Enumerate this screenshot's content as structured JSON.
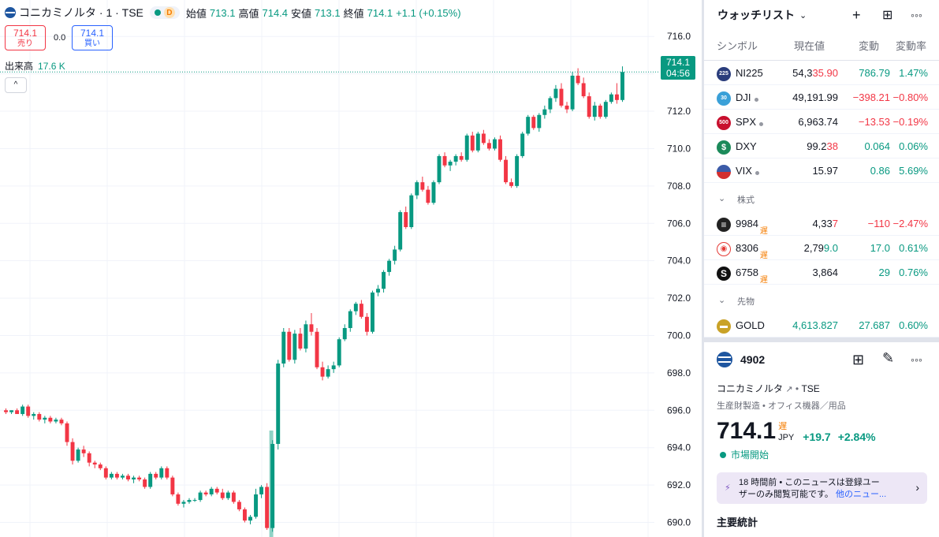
{
  "header": {
    "title": "コニカミノルタ · 1 · TSE",
    "interval_badge": "D",
    "open_label": "始値",
    "open": "713.1",
    "high_label": "高値",
    "high": "714.4",
    "low_label": "安値",
    "low": "713.1",
    "close_label": "終値",
    "close": "714.1",
    "change": "+1.1 (+0.15%)"
  },
  "trade": {
    "sell_price": "714.1",
    "sell_label": "売り",
    "spread": "0.0",
    "buy_price": "714.1",
    "buy_label": "買い"
  },
  "volume": {
    "label": "出来高",
    "value": "17.6 K"
  },
  "price_tag": {
    "price": "714.1",
    "countdown": "04:56"
  },
  "colors": {
    "up": "#089981",
    "down": "#f23645",
    "accent": "#2962ff"
  },
  "chart_data": {
    "type": "candlestick",
    "y_ticks": [
      "716.0",
      "714.0",
      "712.0",
      "710.0",
      "708.0",
      "706.0",
      "704.0",
      "702.0",
      "700.0",
      "698.0",
      "696.0",
      "694.0",
      "692.0",
      "690.0"
    ],
    "ylim": [
      689.6,
      716.6
    ],
    "last_price": 714.1,
    "volume_bar_value": 17.6,
    "candles": [
      [
        696.0,
        696.1,
        695.8,
        695.9
      ],
      [
        695.9,
        696.0,
        695.8,
        696.0
      ],
      [
        696.0,
        696.1,
        695.9,
        695.8
      ],
      [
        695.8,
        696.3,
        695.7,
        696.2
      ],
      [
        696.2,
        696.3,
        695.6,
        695.7
      ],
      [
        695.7,
        695.9,
        695.5,
        695.8
      ],
      [
        695.8,
        695.9,
        695.4,
        695.5
      ],
      [
        695.5,
        695.7,
        695.3,
        695.6
      ],
      [
        695.6,
        695.7,
        695.3,
        695.4
      ],
      [
        695.4,
        695.6,
        695.3,
        695.5
      ],
      [
        695.5,
        695.6,
        695.2,
        695.3
      ],
      [
        695.3,
        695.4,
        694.1,
        694.3
      ],
      [
        694.3,
        694.5,
        693.1,
        693.3
      ],
      [
        693.3,
        694.0,
        693.2,
        693.9
      ],
      [
        693.9,
        694.1,
        693.5,
        693.7
      ],
      [
        693.7,
        693.8,
        693.0,
        693.2
      ],
      [
        693.2,
        693.3,
        692.9,
        693.1
      ],
      [
        693.1,
        693.2,
        692.8,
        692.9
      ],
      [
        692.9,
        693.0,
        692.3,
        692.4
      ],
      [
        692.4,
        692.7,
        692.3,
        692.6
      ],
      [
        692.6,
        692.7,
        692.3,
        692.4
      ],
      [
        692.4,
        692.6,
        692.3,
        692.5
      ],
      [
        692.5,
        692.6,
        692.2,
        692.3
      ],
      [
        692.3,
        692.5,
        692.1,
        692.4
      ],
      [
        692.4,
        692.5,
        692.2,
        692.3
      ],
      [
        692.3,
        692.4,
        691.8,
        691.9
      ],
      [
        691.9,
        692.7,
        691.8,
        692.6
      ],
      [
        692.6,
        692.7,
        692.3,
        692.4
      ],
      [
        692.4,
        693.0,
        692.3,
        692.9
      ],
      [
        692.9,
        693.0,
        692.3,
        692.4
      ],
      [
        692.4,
        692.5,
        691.4,
        691.5
      ],
      [
        691.5,
        691.6,
        690.9,
        691.0
      ],
      [
        691.0,
        691.2,
        690.8,
        691.1
      ],
      [
        691.1,
        691.3,
        691.0,
        691.2
      ],
      [
        691.2,
        691.3,
        691.1,
        691.2
      ],
      [
        691.2,
        691.7,
        691.1,
        691.6
      ],
      [
        691.6,
        691.7,
        691.4,
        691.5
      ],
      [
        691.5,
        691.9,
        691.4,
        691.8
      ],
      [
        691.8,
        691.9,
        691.5,
        691.6
      ],
      [
        691.6,
        691.8,
        691.2,
        691.3
      ],
      [
        691.3,
        691.7,
        691.2,
        691.6
      ],
      [
        691.6,
        691.7,
        691.0,
        691.1
      ],
      [
        691.1,
        691.2,
        690.6,
        690.7
      ],
      [
        690.7,
        690.8,
        690.0,
        690.1
      ],
      [
        690.1,
        690.4,
        689.9,
        690.3
      ],
      [
        690.3,
        691.8,
        690.2,
        691.5
      ],
      [
        691.5,
        692.0,
        691.3,
        691.9
      ],
      [
        691.9,
        692.1,
        689.6,
        689.7
      ],
      [
        689.7,
        694.4,
        689.5,
        694.2
      ],
      [
        694.2,
        698.7,
        693.9,
        698.5
      ],
      [
        698.5,
        700.4,
        698.3,
        700.2
      ],
      [
        700.2,
        700.4,
        698.6,
        698.7
      ],
      [
        698.7,
        700.3,
        698.5,
        700.1
      ],
      [
        700.1,
        700.4,
        699.2,
        699.3
      ],
      [
        699.3,
        700.8,
        699.1,
        700.6
      ],
      [
        700.6,
        701.2,
        700.0,
        700.2
      ],
      [
        700.2,
        700.4,
        698.2,
        698.3
      ],
      [
        698.3,
        698.6,
        697.6,
        697.8
      ],
      [
        697.8,
        698.4,
        697.7,
        698.2
      ],
      [
        698.2,
        698.6,
        698.0,
        698.4
      ],
      [
        698.4,
        699.9,
        698.3,
        699.8
      ],
      [
        699.8,
        700.6,
        699.7,
        700.4
      ],
      [
        700.4,
        701.4,
        700.2,
        701.3
      ],
      [
        701.3,
        701.8,
        701.1,
        701.7
      ],
      [
        701.7,
        701.9,
        700.9,
        701.0
      ],
      [
        701.0,
        701.2,
        700.0,
        700.2
      ],
      [
        700.2,
        702.4,
        700.1,
        702.3
      ],
      [
        702.3,
        702.7,
        702.1,
        702.5
      ],
      [
        702.5,
        703.5,
        702.3,
        703.4
      ],
      [
        703.4,
        704.1,
        703.2,
        704.0
      ],
      [
        704.0,
        704.8,
        703.8,
        704.6
      ],
      [
        704.6,
        706.7,
        704.5,
        706.6
      ],
      [
        706.6,
        706.9,
        705.7,
        705.8
      ],
      [
        705.8,
        707.6,
        705.7,
        707.5
      ],
      [
        707.5,
        708.3,
        707.3,
        708.2
      ],
      [
        708.2,
        708.5,
        707.7,
        707.8
      ],
      [
        707.8,
        708.0,
        707.0,
        707.1
      ],
      [
        707.1,
        708.3,
        707.0,
        708.2
      ],
      [
        708.2,
        709.7,
        708.1,
        709.6
      ],
      [
        709.6,
        709.8,
        709.0,
        709.1
      ],
      [
        709.1,
        709.4,
        708.8,
        709.3
      ],
      [
        709.3,
        709.7,
        709.1,
        709.6
      ],
      [
        709.6,
        709.8,
        709.3,
        709.4
      ],
      [
        709.4,
        710.8,
        709.3,
        710.7
      ],
      [
        710.7,
        710.9,
        709.8,
        709.9
      ],
      [
        709.9,
        710.9,
        709.8,
        710.8
      ],
      [
        710.8,
        711.0,
        710.2,
        710.3
      ],
      [
        710.3,
        710.5,
        709.9,
        710.0
      ],
      [
        710.0,
        710.6,
        709.9,
        710.5
      ],
      [
        710.5,
        710.7,
        709.3,
        709.4
      ],
      [
        709.4,
        709.6,
        708.1,
        708.2
      ],
      [
        708.2,
        708.4,
        707.9,
        708.0
      ],
      [
        708.0,
        709.7,
        707.9,
        709.6
      ],
      [
        709.6,
        710.9,
        709.5,
        710.8
      ],
      [
        710.8,
        711.8,
        710.7,
        711.7
      ],
      [
        711.7,
        711.8,
        711.0,
        711.1
      ],
      [
        711.1,
        711.9,
        710.9,
        711.8
      ],
      [
        711.8,
        712.3,
        711.6,
        712.1
      ],
      [
        712.1,
        712.8,
        711.9,
        712.7
      ],
      [
        712.7,
        713.4,
        712.5,
        713.2
      ],
      [
        713.2,
        713.5,
        712.2,
        712.3
      ],
      [
        712.3,
        712.5,
        711.9,
        712.1
      ],
      [
        712.1,
        714.1,
        712.0,
        713.9
      ],
      [
        713.9,
        714.3,
        713.4,
        713.5
      ],
      [
        713.5,
        713.8,
        712.7,
        712.8
      ],
      [
        712.8,
        713.0,
        711.6,
        711.7
      ],
      [
        711.7,
        712.5,
        711.5,
        712.3
      ],
      [
        712.3,
        712.4,
        711.6,
        711.7
      ],
      [
        711.7,
        712.6,
        711.6,
        712.5
      ],
      [
        712.5,
        713.0,
        712.4,
        712.9
      ],
      [
        712.9,
        713.5,
        712.4,
        712.6
      ],
      [
        712.6,
        714.4,
        712.5,
        714.1
      ]
    ]
  },
  "watchlist": {
    "title": "ウォッチリスト",
    "columns": [
      "シンボル",
      "現在値",
      "変動",
      "変動率"
    ],
    "rows": [
      {
        "icon_text": "225",
        "icon_color": "#2a3d7c",
        "symbol": "NI225",
        "price_a": "54,3",
        "price_b": "35.90",
        "price_b_color": "#f23645",
        "change": "786.79",
        "pct": "1.47%",
        "dir": "pos",
        "dot": false
      },
      {
        "icon_text": "30",
        "icon_color": "#3aa0d8",
        "symbol": "DJI",
        "price_a": "49,191.99",
        "price_b": "",
        "price_b_color": "",
        "change": "−398.21",
        "pct": "−0.80%",
        "dir": "neg",
        "dot": true
      },
      {
        "icon_text": "500",
        "icon_color": "#c8102e",
        "symbol": "SPX",
        "price_a": "6,963.74",
        "price_b": "",
        "price_b_color": "",
        "change": "−13.53",
        "pct": "−0.19%",
        "dir": "neg",
        "dot": true
      },
      {
        "icon_text": "$",
        "icon_color": "#1b8a5a",
        "symbol": "DXY",
        "price_a": "99.2",
        "price_b": "38",
        "price_b_color": "#f23645",
        "change": "0.064",
        "pct": "0.06%",
        "dir": "pos",
        "dot": false
      },
      {
        "icon_text": "VIX",
        "icon_color": "#3c5ba8",
        "symbol": "VIX",
        "price_a": "15.97",
        "price_b": "",
        "price_b_color": "",
        "change": "0.86",
        "pct": "5.69%",
        "dir": "pos",
        "dot": true
      }
    ],
    "section_stocks": "株式",
    "stocks": [
      {
        "icon_text": "≡",
        "icon_color": "#222",
        "symbol": "9984",
        "delay": "遅",
        "price_a": "4,33",
        "price_b": "7",
        "price_b_color": "#f23645",
        "change": "−110",
        "pct": "−2.47%",
        "dir": "neg"
      },
      {
        "icon_text": "◉",
        "icon_color": "#e53935",
        "symbol": "8306",
        "delay": "遅",
        "price_a": "2,79",
        "price_b": "9.0",
        "price_b_color": "#089981",
        "change": "17.0",
        "pct": "0.61%",
        "dir": "pos"
      },
      {
        "icon_text": "S",
        "icon_color": "#111",
        "symbol": "6758",
        "delay": "遅",
        "price_a": "3,864",
        "price_b": "",
        "price_b_color": "",
        "change": "29",
        "pct": "0.76%",
        "dir": "pos"
      }
    ],
    "section_futures": "先物",
    "futures": [
      {
        "icon_text": "▬",
        "icon_color": "#c9a227",
        "symbol": "GOLD",
        "price_a": "4,613.827",
        "price_b": "",
        "price_b_color": "",
        "change": "27.687",
        "pct": "0.60%",
        "dir": "pos"
      }
    ]
  },
  "detail": {
    "symbol": "4902",
    "name": "コニカミノルタ",
    "exchange": "TSE",
    "sector": "生産財製造 • オフィス機器／用品",
    "price": "714.1",
    "delay": "遅",
    "currency": "JPY",
    "change": "+19.7",
    "change_pct": "+2.84%",
    "market_status": "市場開始",
    "news_time": "18 時間前 •",
    "news_text_1": "このニュースは登録ユー",
    "news_text_2": "ザーのみ閲覧可能です。",
    "news_link": "他のニュー...",
    "stats_title": "主要統計"
  }
}
